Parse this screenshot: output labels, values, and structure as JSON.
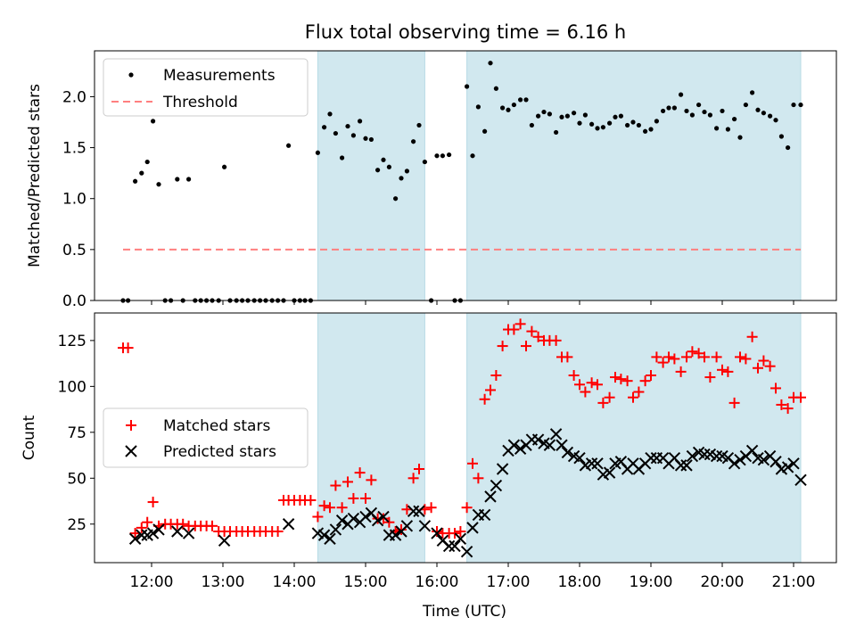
{
  "chart_data": [
    {
      "type": "scatter",
      "title": "Flux total observing time = 6.16 h",
      "xlabel": "",
      "ylabel": "Matched/Predicted stars",
      "x_unit": "hours UTC",
      "xlim": [
        11.2,
        21.6
      ],
      "ylim": [
        0,
        2.45
      ],
      "yticks": [
        0.0,
        0.5,
        1.0,
        1.5,
        2.0
      ],
      "ytick_labels": [
        "0.0",
        "0.5",
        "1.0",
        "1.5",
        "2.0"
      ],
      "legend_position": "top-left",
      "shaded_intervals": [
        [
          14.33,
          15.83
        ],
        [
          16.42,
          21.1
        ]
      ],
      "shade_color": "#d1e8ef",
      "series": [
        {
          "name": "Measurements",
          "kind": "scatter",
          "color": "#000000",
          "marker": "dot",
          "x": [
            11.6,
            11.67,
            11.77,
            11.86,
            11.94,
            12.02,
            12.1,
            12.19,
            12.27,
            12.36,
            12.44,
            12.52,
            12.61,
            12.69,
            12.77,
            12.85,
            12.94,
            13.02,
            13.1,
            13.19,
            13.27,
            13.35,
            13.44,
            13.52,
            13.6,
            13.69,
            13.77,
            13.85,
            13.92,
            14.0,
            14.08,
            14.15,
            14.23,
            14.33,
            14.42,
            14.5,
            14.58,
            14.67,
            14.75,
            14.83,
            14.92,
            15.0,
            15.08,
            15.17,
            15.25,
            15.33,
            15.42,
            15.5,
            15.58,
            15.67,
            15.75,
            15.83,
            15.92,
            16.0,
            16.08,
            16.17,
            16.25,
            16.33,
            16.42,
            16.5,
            16.58,
            16.67,
            16.75,
            16.83,
            16.92,
            17.0,
            17.08,
            17.17,
            17.25,
            17.33,
            17.42,
            17.5,
            17.58,
            17.67,
            17.75,
            17.83,
            17.92,
            18.0,
            18.08,
            18.17,
            18.25,
            18.33,
            18.42,
            18.5,
            18.58,
            18.67,
            18.75,
            18.83,
            18.92,
            19.0,
            19.08,
            19.17,
            19.25,
            19.33,
            19.42,
            19.5,
            19.58,
            19.67,
            19.75,
            19.83,
            19.92,
            20.0,
            20.08,
            20.17,
            20.25,
            20.33,
            20.42,
            20.5,
            20.58,
            20.67,
            20.75,
            20.83,
            20.92,
            21.0,
            21.1
          ],
          "y": [
            0,
            0,
            1.17,
            1.25,
            1.36,
            1.76,
            1.14,
            0,
            0,
            1.19,
            0,
            1.19,
            0,
            0,
            0,
            0,
            0,
            1.31,
            0,
            0,
            0,
            0,
            0,
            0,
            0,
            0,
            0,
            0,
            1.52,
            0,
            0,
            0,
            0,
            1.45,
            1.7,
            1.83,
            1.64,
            1.4,
            1.71,
            1.62,
            1.76,
            1.59,
            1.58,
            1.28,
            1.38,
            1.31,
            1.0,
            1.2,
            1.27,
            1.56,
            1.72,
            1.36,
            0,
            1.42,
            1.42,
            1.43,
            0,
            0,
            2.1,
            1.42,
            1.9,
            1.66,
            2.33,
            2.08,
            1.89,
            1.87,
            1.92,
            1.97,
            1.97,
            1.72,
            1.81,
            1.85,
            1.83,
            1.65,
            1.8,
            1.81,
            1.84,
            1.74,
            1.82,
            1.73,
            1.69,
            1.7,
            1.74,
            1.8,
            1.81,
            1.72,
            1.75,
            1.72,
            1.66,
            1.68,
            1.76,
            1.86,
            1.89,
            1.89,
            2.02,
            1.86,
            1.82,
            1.92,
            1.85,
            1.82,
            1.69,
            1.86,
            1.68,
            1.78,
            1.6,
            1.92,
            2.04,
            1.87,
            1.84,
            1.81,
            1.77,
            1.61,
            1.5,
            1.92,
            1.92
          ]
        },
        {
          "name": "Threshold",
          "kind": "dashed-line",
          "color": "#ff7f7f",
          "x": [
            11.6,
            21.1
          ],
          "y": [
            0.5,
            0.5
          ]
        }
      ]
    },
    {
      "type": "scatter",
      "title": "",
      "xlabel": "Time (UTC)",
      "ylabel": "Count",
      "x_unit": "hours UTC",
      "xlim": [
        11.2,
        21.6
      ],
      "ylim": [
        4,
        140
      ],
      "yticks": [
        25,
        50,
        75,
        100,
        125
      ],
      "ytick_labels": [
        "25",
        "50",
        "75",
        "100",
        "125"
      ],
      "xticks": [
        12,
        13,
        14,
        15,
        16,
        17,
        18,
        19,
        20,
        21
      ],
      "xtick_labels": [
        "12:00",
        "13:00",
        "14:00",
        "15:00",
        "16:00",
        "17:00",
        "18:00",
        "19:00",
        "20:00",
        "21:00"
      ],
      "legend_position": "center-left",
      "shaded_intervals": [
        [
          14.33,
          15.83
        ],
        [
          16.42,
          21.1
        ]
      ],
      "shade_color": "#d1e8ef",
      "series": [
        {
          "name": "Matched stars",
          "kind": "scatter",
          "color": "#ff0000",
          "marker": "plus",
          "x": [
            11.6,
            11.67,
            11.77,
            11.86,
            11.94,
            12.02,
            12.1,
            12.19,
            12.27,
            12.36,
            12.44,
            12.52,
            12.61,
            12.69,
            12.77,
            12.85,
            12.94,
            13.02,
            13.1,
            13.19,
            13.27,
            13.35,
            13.44,
            13.52,
            13.6,
            13.69,
            13.77,
            13.85,
            13.92,
            14.0,
            14.08,
            14.15,
            14.23,
            14.33,
            14.42,
            14.5,
            14.58,
            14.67,
            14.75,
            14.83,
            14.92,
            15.0,
            15.08,
            15.17,
            15.25,
            15.33,
            15.42,
            15.5,
            15.58,
            15.67,
            15.75,
            15.83,
            15.92,
            16.0,
            16.08,
            16.17,
            16.25,
            16.33,
            16.42,
            16.5,
            16.58,
            16.67,
            16.75,
            16.83,
            16.92,
            17.0,
            17.08,
            17.17,
            17.25,
            17.33,
            17.42,
            17.5,
            17.58,
            17.67,
            17.75,
            17.83,
            17.92,
            18.0,
            18.08,
            18.17,
            18.25,
            18.33,
            18.42,
            18.5,
            18.58,
            18.67,
            18.75,
            18.83,
            18.92,
            19.0,
            19.08,
            19.17,
            19.25,
            19.33,
            19.42,
            19.5,
            19.58,
            19.67,
            19.75,
            19.83,
            19.92,
            20.0,
            20.08,
            20.17,
            20.25,
            20.33,
            20.42,
            20.5,
            20.58,
            20.67,
            20.75,
            20.83,
            20.92,
            21.0,
            21.1
          ],
          "y": [
            121,
            121,
            20,
            23,
            26,
            37,
            24,
            25,
            25,
            25,
            25,
            24,
            24,
            24,
            24,
            24,
            21,
            21,
            21,
            21,
            21,
            21,
            21,
            21,
            21,
            21,
            21,
            38,
            38,
            38,
            38,
            38,
            38,
            29,
            35,
            34,
            46,
            34,
            48,
            39,
            53,
            39,
            49,
            28,
            28,
            26,
            21,
            22,
            33,
            50,
            55,
            33,
            34,
            21,
            20,
            20,
            20,
            21,
            34,
            58,
            50,
            93,
            98,
            106,
            122,
            131,
            131,
            134,
            122,
            130,
            127,
            125,
            125,
            125,
            116,
            116,
            106,
            101,
            97,
            102,
            101,
            91,
            94,
            105,
            104,
            103,
            94,
            97,
            103,
            106,
            116,
            113,
            116,
            115,
            108,
            116,
            119,
            118,
            116,
            105,
            116,
            109,
            108,
            91,
            116,
            115,
            127,
            110,
            114,
            111,
            99,
            90,
            88,
            94,
            94
          ]
        },
        {
          "name": "Predicted stars",
          "kind": "scatter",
          "color": "#000000",
          "marker": "x",
          "x": [
            11.77,
            11.86,
            11.94,
            12.02,
            12.1,
            12.36,
            12.52,
            13.02,
            13.92,
            14.33,
            14.42,
            14.5,
            14.58,
            14.67,
            14.75,
            14.83,
            14.92,
            15.0,
            15.08,
            15.17,
            15.25,
            15.33,
            15.42,
            15.5,
            15.58,
            15.67,
            15.75,
            15.83,
            16.0,
            16.08,
            16.17,
            16.25,
            16.33,
            16.42,
            16.5,
            16.58,
            16.67,
            16.75,
            16.83,
            16.92,
            17.0,
            17.08,
            17.17,
            17.25,
            17.33,
            17.42,
            17.5,
            17.58,
            17.67,
            17.75,
            17.83,
            17.92,
            18.0,
            18.08,
            18.17,
            18.25,
            18.33,
            18.42,
            18.5,
            18.58,
            18.67,
            18.75,
            18.83,
            18.92,
            19.0,
            19.08,
            19.17,
            19.25,
            19.33,
            19.42,
            19.5,
            19.58,
            19.67,
            19.75,
            19.83,
            19.92,
            20.0,
            20.08,
            20.17,
            20.25,
            20.33,
            20.42,
            20.5,
            20.58,
            20.67,
            20.75,
            20.83,
            20.92,
            21.0,
            21.1
          ],
          "y": [
            17,
            19,
            19,
            20,
            22,
            21,
            20,
            16,
            25,
            20,
            19,
            17,
            22,
            27,
            25,
            28,
            26,
            29,
            31,
            27,
            29,
            19,
            19,
            21,
            24,
            32,
            32,
            24,
            20,
            16,
            13,
            13,
            17,
            10,
            23,
            30,
            30,
            40,
            46,
            55,
            65,
            68,
            66,
            68,
            71,
            71,
            69,
            68,
            74,
            68,
            64,
            62,
            61,
            57,
            58,
            58,
            52,
            53,
            58,
            59,
            55,
            58,
            55,
            58,
            61,
            61,
            61,
            58,
            61,
            57,
            57,
            62,
            64,
            63,
            63,
            62,
            62,
            61,
            58,
            60,
            62,
            65,
            61,
            60,
            62,
            59,
            55,
            56,
            58,
            49
          ]
        }
      ]
    }
  ]
}
